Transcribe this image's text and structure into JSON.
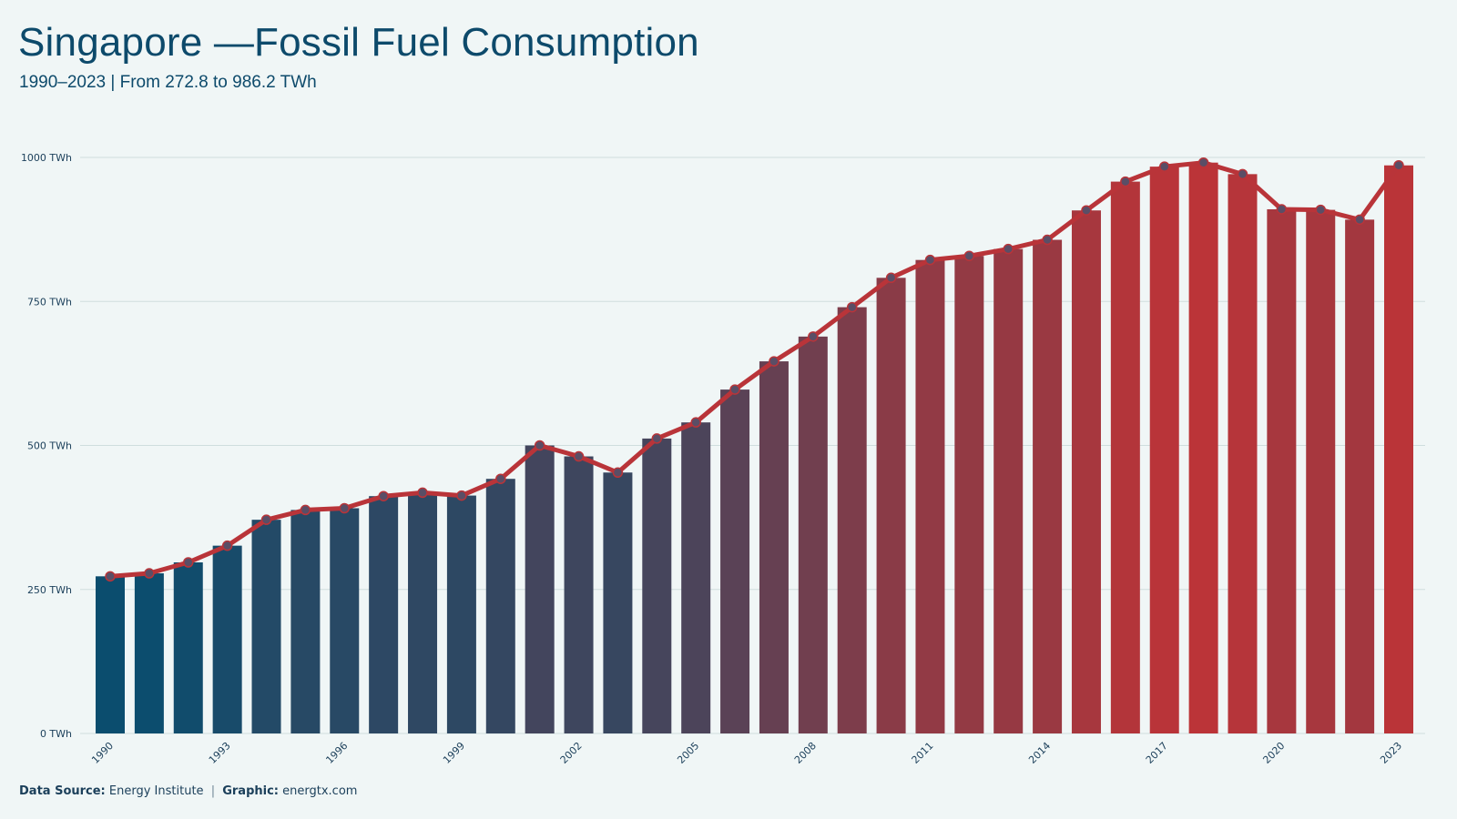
{
  "title": "Singapore —Fossil Fuel Consumption",
  "subtitle": "1990–2023 | From 272.8 to 986.2 TWh",
  "footer": {
    "source_label": "Data Source:",
    "source_value": "Energy Institute",
    "separator": "|",
    "graphic_label": "Graphic:",
    "graphic_value": "energtx.com"
  },
  "chart_data": {
    "type": "bar",
    "y_unit": "TWh",
    "ylim": [
      0,
      1000
    ],
    "y_ticks": [
      0,
      250,
      500,
      750,
      1000
    ],
    "y_tick_labels": [
      "0 TWh",
      "250 TWh",
      "500 TWh",
      "750 TWh",
      "1000 TWh"
    ],
    "x_tick_labels": [
      "1990",
      "1993",
      "1996",
      "1999",
      "2002",
      "2005",
      "2008",
      "2011",
      "2014",
      "2017",
      "2020",
      "2023"
    ],
    "grid": "horizontal",
    "line_overlay": true,
    "colors": {
      "start": "#0b4d6e",
      "end": "#bb3438",
      "line": "#b93439",
      "grid": "#cfdede"
    },
    "categories": [
      "1990",
      "1991",
      "1992",
      "1993",
      "1994",
      "1995",
      "1996",
      "1997",
      "1998",
      "1999",
      "2000",
      "2001",
      "2002",
      "2003",
      "2004",
      "2005",
      "2006",
      "2007",
      "2008",
      "2009",
      "2010",
      "2011",
      "2012",
      "2013",
      "2014",
      "2015",
      "2016",
      "2017",
      "2018",
      "2019",
      "2020",
      "2021",
      "2022",
      "2023"
    ],
    "values": [
      272.8,
      278,
      297,
      326,
      371,
      388,
      391,
      412,
      418,
      413,
      442,
      500,
      481,
      453,
      512,
      540,
      597,
      646,
      689,
      740,
      791,
      822,
      829,
      841,
      857,
      908,
      958,
      984,
      991,
      971,
      910,
      909,
      892,
      986.2
    ]
  }
}
